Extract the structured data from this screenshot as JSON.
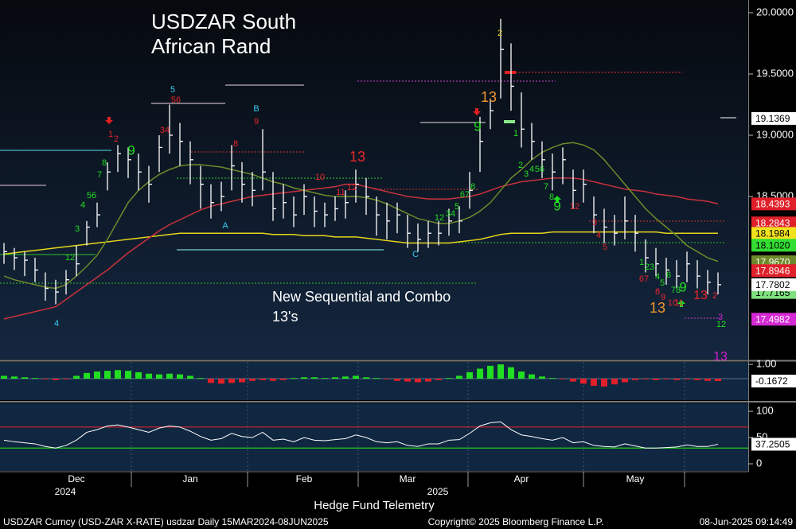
{
  "chart_data": [
    {
      "type": "ohlc",
      "title": "USDZAR South African Rand",
      "note": "New Sequential and Combo 13's",
      "categories": [
        null,
        null,
        null,
        null,
        null,
        null,
        null,
        "Dec",
        null,
        null,
        null,
        null,
        null,
        null,
        null,
        null,
        null,
        null,
        "Jan",
        null,
        null,
        null,
        null,
        null,
        null,
        null,
        null,
        null,
        null,
        "Feb",
        null,
        null,
        null,
        null,
        null,
        null,
        null,
        null,
        null,
        "Mar",
        null,
        null,
        null,
        null,
        null,
        null,
        null,
        null,
        null,
        null,
        "Apr",
        null,
        null,
        null,
        null,
        null,
        null,
        null,
        null,
        null,
        null,
        "May",
        null,
        null,
        null,
        null,
        null,
        null,
        null,
        null
      ],
      "year_labels": [
        "2024",
        "2025"
      ],
      "bar_color": "#ffffff",
      "high": [
        18.12,
        18.08,
        18.05,
        18.0,
        17.88,
        17.82,
        17.9,
        18.1,
        18.3,
        18.45,
        18.78,
        18.92,
        18.9,
        18.85,
        18.75,
        19.0,
        19.25,
        19.1,
        18.95,
        18.75,
        18.6,
        18.62,
        18.92,
        18.78,
        18.7,
        19.05,
        18.7,
        18.6,
        18.5,
        18.6,
        18.5,
        18.45,
        18.5,
        18.55,
        18.72,
        18.65,
        18.5,
        18.45,
        18.45,
        18.35,
        18.28,
        18.3,
        18.3,
        18.4,
        18.42,
        18.7,
        19.15,
        19.3,
        19.95,
        19.75,
        19.35,
        19.1,
        18.95,
        18.85,
        18.9,
        18.72,
        18.72,
        18.5,
        18.4,
        18.35,
        18.5,
        18.35,
        18.15,
        18.08,
        18.0,
        17.98,
        18.05,
        17.98,
        17.9,
        17.88
      ],
      "low": [
        17.95,
        17.9,
        17.85,
        17.8,
        17.65,
        17.62,
        17.7,
        17.85,
        18.1,
        18.25,
        18.55,
        18.7,
        18.65,
        18.55,
        18.45,
        18.7,
        18.85,
        18.75,
        18.6,
        18.4,
        18.32,
        18.38,
        18.55,
        18.45,
        18.42,
        18.55,
        18.3,
        18.32,
        18.25,
        18.35,
        18.25,
        18.25,
        18.3,
        18.32,
        18.45,
        18.35,
        18.18,
        18.15,
        18.2,
        18.08,
        18.05,
        18.08,
        18.1,
        18.18,
        18.2,
        18.4,
        18.7,
        19.05,
        19.3,
        19.2,
        18.9,
        18.8,
        18.65,
        18.55,
        18.6,
        18.4,
        18.45,
        18.2,
        18.12,
        18.1,
        18.15,
        18.05,
        17.88,
        17.85,
        17.78,
        17.75,
        17.8,
        17.75,
        17.7,
        17.7
      ],
      "close": [
        18.05,
        18.0,
        17.98,
        17.9,
        17.75,
        17.72,
        17.82,
        17.95,
        18.25,
        18.35,
        18.7,
        18.85,
        18.8,
        18.7,
        18.6,
        18.9,
        19.0,
        18.95,
        18.8,
        18.6,
        18.45,
        18.5,
        18.75,
        18.6,
        18.55,
        18.7,
        18.4,
        18.45,
        18.35,
        18.5,
        18.38,
        18.35,
        18.4,
        18.45,
        18.6,
        18.5,
        18.35,
        18.3,
        18.35,
        18.2,
        18.15,
        18.2,
        18.2,
        18.3,
        18.3,
        18.55,
        18.95,
        19.2,
        19.7,
        19.4,
        19.05,
        18.95,
        18.8,
        18.7,
        18.8,
        18.55,
        18.6,
        18.35,
        18.25,
        18.2,
        18.3,
        18.2,
        18.0,
        17.95,
        17.9,
        17.85,
        17.95,
        17.85,
        17.8,
        17.78
      ],
      "moving_averages": [
        {
          "color": "#e6d51c",
          "values": [
            18.03,
            18.04,
            18.05,
            18.06,
            18.07,
            18.08,
            18.09,
            18.1,
            18.11,
            18.12,
            18.13,
            18.14,
            18.15,
            18.16,
            18.17,
            18.18,
            18.19,
            18.2,
            18.2,
            18.2,
            18.2,
            18.2,
            18.2,
            18.2,
            18.2,
            18.2,
            18.19,
            18.19,
            18.19,
            18.18,
            18.18,
            18.18,
            18.17,
            18.17,
            18.17,
            18.16,
            18.15,
            18.14,
            18.13,
            18.12,
            18.12,
            18.12,
            18.12,
            18.12,
            18.13,
            18.14,
            18.15,
            18.17,
            18.19,
            18.2,
            18.2,
            18.2,
            18.2,
            18.21,
            18.21,
            18.21,
            18.21,
            18.21,
            18.21,
            18.21,
            18.21,
            18.21,
            18.21,
            18.21,
            18.2,
            18.2,
            18.2,
            18.2,
            18.2,
            18.2
          ]
        },
        {
          "color": "#c8323c",
          "values": [
            17.5,
            17.52,
            17.54,
            17.56,
            17.58,
            17.6,
            17.66,
            17.72,
            17.78,
            17.84,
            17.9,
            17.97,
            18.04,
            18.1,
            18.16,
            18.22,
            18.27,
            18.31,
            18.35,
            18.39,
            18.42,
            18.44,
            18.46,
            18.48,
            18.5,
            18.51,
            18.52,
            18.53,
            18.54,
            18.55,
            18.56,
            18.57,
            18.58,
            18.6,
            18.6,
            18.58,
            18.56,
            18.54,
            18.52,
            18.5,
            18.49,
            18.48,
            18.48,
            18.48,
            18.49,
            18.5,
            18.52,
            18.55,
            18.58,
            18.6,
            18.62,
            18.63,
            18.64,
            18.65,
            18.65,
            18.65,
            18.64,
            18.62,
            18.6,
            18.58,
            18.56,
            18.55,
            18.54,
            18.52,
            18.51,
            18.5,
            18.48,
            18.47,
            18.46,
            18.44
          ]
        },
        {
          "color": "#6e8a2a",
          "values": [
            17.85,
            17.82,
            17.8,
            17.78,
            17.76,
            17.75,
            17.78,
            17.85,
            17.93,
            18.02,
            18.15,
            18.3,
            18.45,
            18.55,
            18.62,
            18.68,
            18.72,
            18.75,
            18.76,
            18.76,
            18.75,
            18.74,
            18.72,
            18.7,
            18.68,
            18.65,
            18.62,
            18.6,
            18.57,
            18.55,
            18.53,
            18.51,
            18.5,
            18.5,
            18.5,
            18.49,
            18.47,
            18.44,
            18.4,
            18.36,
            18.32,
            18.3,
            18.28,
            18.28,
            18.3,
            18.33,
            18.38,
            18.45,
            18.55,
            18.65,
            18.72,
            18.8,
            18.86,
            18.9,
            18.93,
            18.94,
            18.92,
            18.88,
            18.8,
            18.7,
            18.6,
            18.5,
            18.4,
            18.32,
            18.25,
            18.18,
            18.1,
            18.05,
            18.0,
            17.97
          ]
        }
      ],
      "ylim": [
        17.1688,
        20.1039
      ],
      "yticks": [
        {
          "value": 20,
          "label": "20.0000"
        },
        {
          "value": 19.5,
          "label": "19.5000"
        },
        {
          "value": 19,
          "label": "19.0000"
        },
        {
          "value": 18.5,
          "label": "18.5000"
        }
      ],
      "tags": [
        {
          "value": 19.1369,
          "label": "19.1369",
          "color": "#ffffff",
          "text_color": "#000000"
        },
        {
          "value": 18.4393,
          "label": "18.4393",
          "color": "#e0202a",
          "text_color": "#ffffff"
        },
        {
          "value": 18.2843,
          "label": "18.2843",
          "color": "#e0202a",
          "text_color": "#ffffff"
        },
        {
          "value": 18.1984,
          "label": "18.1984",
          "color": "#f2e21e",
          "text_color": "#000000"
        },
        {
          "value": 18.102,
          "label": "18.1020",
          "color": "#33dd33",
          "text_color": "#000000"
        },
        {
          "value": 17.967,
          "label": "17.9670",
          "color": "#6e8a2a",
          "text_color": "#ffffff"
        },
        {
          "value": 17.8946,
          "label": "17.8946",
          "color": "#e0202a",
          "text_color": "#ffffff"
        },
        {
          "value": 17.7165,
          "label": "17.7165",
          "color": "#7fe07f",
          "text_color": "#000000"
        },
        {
          "value": 17.7802,
          "label": "17.7802",
          "color": "#ffffff",
          "text_color": "#000000"
        },
        {
          "value": 17.4982,
          "label": "17.4982",
          "color": "#d42ad4",
          "text_color": "#ffffff"
        }
      ],
      "annotations": [
        {
          "text": "9",
          "color": "#22dd22"
        },
        {
          "text": "1",
          "color": "#e8262b"
        },
        {
          "text": "2",
          "color": "#e8262b"
        },
        {
          "text": "12",
          "color": "#22dd22"
        },
        {
          "text": "3",
          "color": "#22dd22"
        },
        {
          "text": "4",
          "color": "#22dd22"
        },
        {
          "text": "56",
          "color": "#22dd22"
        },
        {
          "text": "7",
          "color": "#22dd22"
        },
        {
          "text": "8",
          "color": "#22dd22"
        },
        {
          "text": "4",
          "color": "#33ccee"
        },
        {
          "text": "34",
          "color": "#e8262b"
        },
        {
          "text": "5",
          "color": "#33ccee"
        },
        {
          "text": "56",
          "color": "#e8262b"
        },
        {
          "text": "8",
          "color": "#e8262b"
        },
        {
          "text": "B",
          "color": "#33ccee"
        },
        {
          "text": "9",
          "color": "#e8262b"
        },
        {
          "text": "A",
          "color": "#33ccee"
        },
        {
          "text": "10",
          "color": "#e8262b"
        },
        {
          "text": "11",
          "color": "#e8262b"
        },
        {
          "text": "12",
          "color": "#e8262b"
        },
        {
          "text": "13",
          "color": "#e8262b"
        },
        {
          "text": "C",
          "color": "#33ccee"
        },
        {
          "text": "12",
          "color": "#22dd22"
        },
        {
          "text": "34",
          "color": "#22dd22"
        },
        {
          "text": "5",
          "color": "#22dd22"
        },
        {
          "text": "67",
          "color": "#22dd22"
        },
        {
          "text": "8",
          "color": "#22dd22"
        },
        {
          "text": "9",
          "color": "#22dd22"
        },
        {
          "text": "13",
          "color": "#f0962e"
        },
        {
          "text": "2",
          "color": "#e8d21d"
        },
        {
          "text": "1",
          "color": "#22dd22"
        },
        {
          "text": "2",
          "color": "#22dd22"
        },
        {
          "text": "3",
          "color": "#22dd22"
        },
        {
          "text": "4",
          "color": "#22dd22"
        },
        {
          "text": "56",
          "color": "#22dd22"
        },
        {
          "text": "7",
          "color": "#22dd22"
        },
        {
          "text": "8",
          "color": "#22dd22"
        },
        {
          "text": "9",
          "color": "#22dd22"
        },
        {
          "text": "12",
          "color": "#e8262b"
        },
        {
          "text": "3",
          "color": "#e8262b"
        },
        {
          "text": "4",
          "color": "#e8262b"
        },
        {
          "text": "5",
          "color": "#e8262b"
        },
        {
          "text": "1",
          "color": "#22dd22"
        },
        {
          "text": "23",
          "color": "#22dd22"
        },
        {
          "text": "4",
          "color": "#22dd22"
        },
        {
          "text": "5",
          "color": "#22dd22"
        },
        {
          "text": "6",
          "color": "#22dd22"
        },
        {
          "text": "78",
          "color": "#22dd22"
        },
        {
          "text": "67",
          "color": "#e8262b"
        },
        {
          "text": "8",
          "color": "#e8262b"
        },
        {
          "text": "9",
          "color": "#e8262b"
        },
        {
          "text": "10",
          "color": "#e8262b"
        },
        {
          "text": "11",
          "color": "#e8262b"
        },
        {
          "text": "13",
          "color": "#f0962e"
        },
        {
          "text": "9",
          "color": "#22dd22"
        },
        {
          "text": "13",
          "color": "#e8262b"
        },
        {
          "text": "2",
          "color": "#e8262b"
        },
        {
          "text": "12",
          "color": "#22dd22"
        },
        {
          "text": "3",
          "color": "#cc22cc"
        },
        {
          "text": "13",
          "color": "#cc22cc"
        }
      ]
    },
    {
      "type": "histogram-oscillator",
      "values": [
        0.2,
        0.15,
        0.1,
        0.05,
        -0.05,
        -0.1,
        -0.05,
        0.2,
        0.4,
        0.5,
        0.55,
        0.6,
        0.55,
        0.45,
        0.35,
        0.3,
        0.35,
        0.3,
        0.2,
        0.05,
        -0.3,
        -0.35,
        -0.3,
        -0.25,
        -0.15,
        -0.1,
        -0.15,
        -0.1,
        0.05,
        0.1,
        0.1,
        0.05,
        0.1,
        0.15,
        0.2,
        0.1,
        0.05,
        -0.05,
        -0.15,
        -0.2,
        -0.25,
        -0.2,
        -0.1,
        0.05,
        0.2,
        0.45,
        0.7,
        0.9,
        1.0,
        0.8,
        0.5,
        0.3,
        0.15,
        0.05,
        -0.05,
        -0.2,
        -0.35,
        -0.5,
        -0.55,
        -0.4,
        -0.25,
        -0.1,
        -0.05,
        -0.1,
        -0.05,
        -0.1,
        -0.05,
        -0.1,
        -0.15,
        -0.1672
      ],
      "colors": {
        "positive": "#22dd22",
        "negative": "#e0202a"
      },
      "ylim": [
        -1.5,
        1.17
      ],
      "yticks": [
        {
          "value": 1,
          "label": "1.00"
        }
      ],
      "tags": [
        {
          "value": -0.1672,
          "label": "-0.1672",
          "color": "#ffffff",
          "text_color": "#000000"
        }
      ]
    },
    {
      "type": "line",
      "values": [
        45,
        42,
        40,
        38,
        33,
        30,
        35,
        45,
        60,
        65,
        72,
        74,
        70,
        65,
        60,
        68,
        72,
        70,
        62,
        52,
        45,
        48,
        58,
        52,
        50,
        60,
        45,
        47,
        42,
        50,
        45,
        44,
        46,
        48,
        55,
        50,
        42,
        40,
        42,
        35,
        33,
        38,
        38,
        45,
        46,
        58,
        72,
        78,
        80,
        65,
        55,
        52,
        48,
        45,
        50,
        40,
        42,
        35,
        33,
        32,
        38,
        34,
        30,
        30,
        31,
        32,
        36,
        33,
        33,
        37.2505
      ],
      "color": "#ffffff",
      "levels": [
        {
          "value": 70,
          "color": "#e0202a"
        },
        {
          "value": 30,
          "color": "#22cc22"
        }
      ],
      "ylim": [
        -13.6,
        115.2
      ],
      "yticks": [
        100,
        50,
        0
      ],
      "tags": [
        {
          "value": 37.2505,
          "label": "37.2505",
          "color": "#ffffff",
          "text_color": "#000000"
        }
      ]
    }
  ],
  "footer": {
    "center": "Hedge Fund Telemetry",
    "left": "USDZAR Curncy (USD-ZAR X-RATE) usdzar  Daily 15MAR2024-08JUN2025",
    "copyright": "Copyright© 2025 Bloomberg Finance L.P.",
    "timestamp": "08-Jun-2025 09:14:49"
  }
}
